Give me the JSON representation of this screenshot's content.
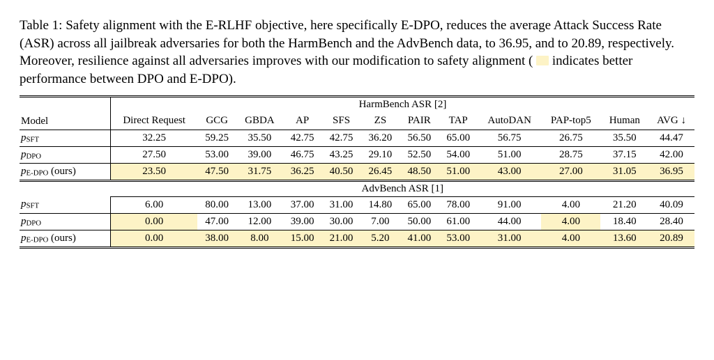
{
  "caption_parts": {
    "a": "Table 1: Safety alignment with the E-RLHF objective, here specifically E-DPO, reduces the average Attack Success Rate (ASR) across all jailbreak adversaries for both the HarmBench and the AdvBench data, to 36.95, and to 20.89, respectively. Moreover, resilience against all adversaries improves with our modification to safety alignment (",
    "b": " indicates better performance between DPO and E-DPO)."
  },
  "highlight_color": "#fdf3c6",
  "headers": {
    "model": "Model",
    "cols": [
      "Direct Request",
      "GCG",
      "GBDA",
      "AP",
      "SFS",
      "ZS",
      "PAIR",
      "TAP",
      "AutoDAN",
      "PAP-top5",
      "Human"
    ],
    "avg": "AVG ↓"
  },
  "sections": {
    "harm": "HarmBench ASR [2]",
    "adv": "AdvBench ASR [1]"
  },
  "models": {
    "sft": {
      "p": "p",
      "sub": "SFT",
      "suffix": ""
    },
    "dpo": {
      "p": "p",
      "sub": "DPO",
      "suffix": ""
    },
    "edpo": {
      "p": "p",
      "sub": "E-DPO",
      "suffix": " (ours)"
    }
  },
  "harm": {
    "sft": {
      "v": [
        "32.25",
        "59.25",
        "35.50",
        "42.75",
        "42.75",
        "36.20",
        "56.50",
        "65.00",
        "56.75",
        "26.75",
        "35.50"
      ],
      "avg": "44.47",
      "hl": [
        0,
        0,
        0,
        0,
        0,
        0,
        0,
        0,
        0,
        0,
        0
      ],
      "avg_hl": 0
    },
    "dpo": {
      "v": [
        "27.50",
        "53.00",
        "39.00",
        "46.75",
        "43.25",
        "29.10",
        "52.50",
        "54.00",
        "51.00",
        "28.75",
        "37.15"
      ],
      "avg": "42.00",
      "hl": [
        0,
        0,
        0,
        0,
        0,
        0,
        0,
        0,
        0,
        0,
        0
      ],
      "avg_hl": 0
    },
    "edpo": {
      "v": [
        "23.50",
        "47.50",
        "31.75",
        "36.25",
        "40.50",
        "26.45",
        "48.50",
        "51.00",
        "43.00",
        "27.00",
        "31.05"
      ],
      "avg": "36.95",
      "hl": [
        1,
        1,
        1,
        1,
        1,
        1,
        1,
        1,
        1,
        1,
        1
      ],
      "avg_hl": 1
    }
  },
  "adv": {
    "sft": {
      "v": [
        "6.00",
        "80.00",
        "13.00",
        "37.00",
        "31.00",
        "14.80",
        "65.00",
        "78.00",
        "91.00",
        "4.00",
        "21.20"
      ],
      "avg": "40.09",
      "hl": [
        0,
        0,
        0,
        0,
        0,
        0,
        0,
        0,
        0,
        0,
        0
      ],
      "avg_hl": 0
    },
    "dpo": {
      "v": [
        "0.00",
        "47.00",
        "12.00",
        "39.00",
        "30.00",
        "7.00",
        "50.00",
        "61.00",
        "44.00",
        "4.00",
        "18.40"
      ],
      "avg": "28.40",
      "hl": [
        1,
        0,
        0,
        0,
        0,
        0,
        0,
        0,
        0,
        1,
        0
      ],
      "avg_hl": 0
    },
    "edpo": {
      "v": [
        "0.00",
        "38.00",
        "8.00",
        "15.00",
        "21.00",
        "5.20",
        "41.00",
        "53.00",
        "31.00",
        "4.00",
        "13.60"
      ],
      "avg": "20.89",
      "hl": [
        1,
        1,
        1,
        1,
        1,
        1,
        1,
        1,
        1,
        1,
        1
      ],
      "avg_hl": 1
    }
  }
}
